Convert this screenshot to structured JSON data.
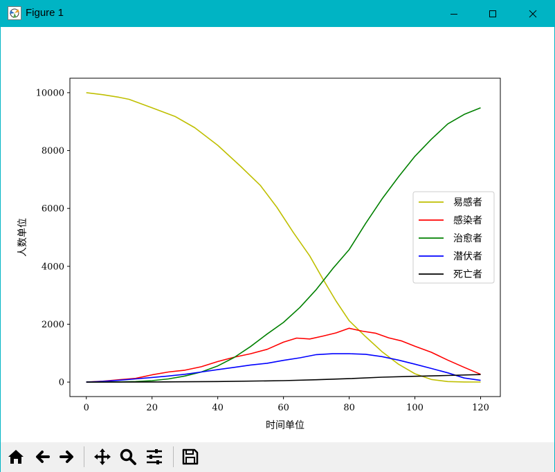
{
  "window": {
    "title": "Figure 1",
    "titlebar_color": "#00b4c4"
  },
  "toolbar": {
    "buttons": [
      "home-icon",
      "back-icon",
      "forward-icon",
      "pan-icon",
      "zoom-icon",
      "configure-subplots-icon",
      "save-icon"
    ]
  },
  "chart_data": {
    "type": "line",
    "title": "",
    "xlabel": "时间单位",
    "ylabel": "人数单位",
    "xlim": [
      -5,
      126
    ],
    "ylim": [
      -500,
      10500
    ],
    "xticks": [
      0,
      20,
      40,
      60,
      80,
      100,
      120
    ],
    "yticks": [
      0,
      2000,
      4000,
      6000,
      8000,
      10000
    ],
    "grid": false,
    "legend_position": "center-right",
    "series": [
      {
        "name": "易感者",
        "color": "#bfbf00",
        "x": [
          0,
          5,
          10,
          13,
          20,
          27,
          33,
          40,
          47,
          53,
          58,
          63,
          68,
          72,
          76,
          80,
          85,
          90,
          95,
          100,
          105,
          110,
          115,
          120
        ],
        "y": [
          10000,
          9930,
          9840,
          9770,
          9480,
          9180,
          8790,
          8180,
          7450,
          6790,
          6040,
          5170,
          4360,
          3560,
          2800,
          2120,
          1570,
          1050,
          620,
          290,
          90,
          20,
          5,
          2
        ]
      },
      {
        "name": "感染者",
        "color": "#ff0000",
        "x": [
          0,
          5,
          10,
          15,
          20,
          25,
          30,
          35,
          40,
          45,
          50,
          55,
          60,
          64,
          68,
          72,
          76,
          80,
          84,
          88,
          92,
          96,
          100,
          105,
          110,
          115,
          120
        ],
        "y": [
          0,
          30,
          80,
          130,
          250,
          350,
          410,
          530,
          710,
          860,
          980,
          1130,
          1380,
          1520,
          1490,
          1590,
          1700,
          1860,
          1760,
          1690,
          1530,
          1420,
          1240,
          1030,
          760,
          510,
          270
        ]
      },
      {
        "name": "治愈者",
        "color": "#008000",
        "x": [
          0,
          10,
          15,
          20,
          25,
          30,
          35,
          40,
          45,
          50,
          55,
          60,
          65,
          70,
          75,
          80,
          85,
          90,
          95,
          100,
          105,
          110,
          115,
          120
        ],
        "y": [
          0,
          8,
          20,
          50,
          110,
          210,
          350,
          560,
          850,
          1230,
          1660,
          2060,
          2580,
          3200,
          3920,
          4580,
          5480,
          6330,
          7090,
          7800,
          8390,
          8920,
          9250,
          9480
        ]
      },
      {
        "name": "潜伏者",
        "color": "#0000ff",
        "x": [
          0,
          5,
          10,
          15,
          20,
          25,
          30,
          35,
          40,
          45,
          50,
          55,
          60,
          65,
          70,
          75,
          80,
          85,
          90,
          95,
          100,
          105,
          110,
          115,
          120
        ],
        "y": [
          0,
          25,
          65,
          110,
          160,
          210,
          270,
          350,
          430,
          510,
          590,
          650,
          750,
          840,
          950,
          980,
          980,
          960,
          880,
          760,
          620,
          470,
          320,
          140,
          60
        ]
      },
      {
        "name": "死亡者",
        "color": "#000000",
        "x": [
          0,
          20,
          40,
          60,
          70,
          80,
          90,
          100,
          110,
          120
        ],
        "y": [
          0,
          5,
          20,
          50,
          80,
          120,
          170,
          200,
          230,
          260
        ]
      }
    ]
  }
}
